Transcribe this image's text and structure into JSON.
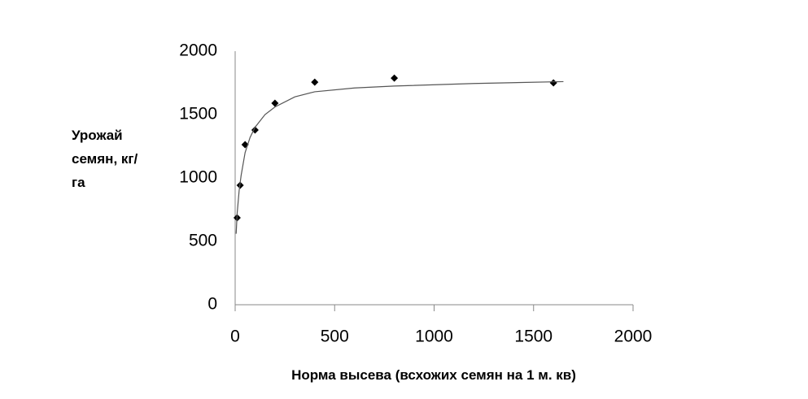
{
  "chart_data": {
    "type": "scatter",
    "xlabel": "Норма высева (всхожих семян на 1 м. кв)",
    "ylabel": "Урожай семян, кг/га",
    "xlim": [
      0,
      2000
    ],
    "xticks": [
      0,
      500,
      1000,
      1500,
      2000
    ],
    "ylim": [
      0,
      2000
    ],
    "yticks": [
      0,
      500,
      1000,
      1500,
      2000
    ],
    "grid": false,
    "series": [
      {
        "color": "#000000",
        "marker": "diamond",
        "x": [
          10,
          25,
          50,
          100,
          200,
          400,
          800,
          1600
        ],
        "values": [
          686,
          942,
          1263,
          1378,
          1590,
          1756,
          1788,
          1750
        ]
      },
      {
        "color": "#555555",
        "marker": "line",
        "x": [
          5,
          10,
          20,
          30,
          50,
          75,
          100,
          150,
          200,
          300,
          400,
          600,
          800,
          1200,
          1650
        ],
        "values": [
          560,
          720,
          900,
          1020,
          1200,
          1320,
          1400,
          1500,
          1560,
          1640,
          1680,
          1710,
          1725,
          1745,
          1760
        ]
      }
    ]
  }
}
